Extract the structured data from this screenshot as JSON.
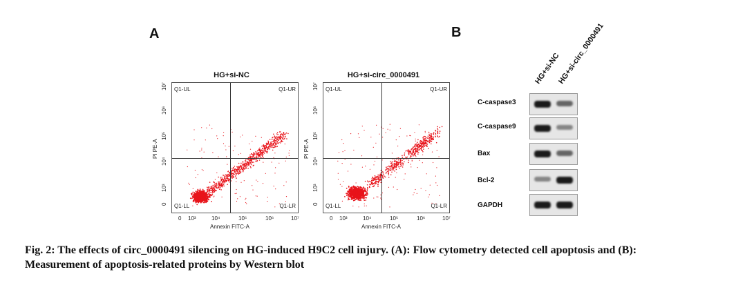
{
  "panels": {
    "a": "A",
    "b": "B"
  },
  "flow": {
    "plots": [
      {
        "title": "HG+si-NC"
      },
      {
        "title": "HG+si-circ_0000491"
      }
    ],
    "quadrants": {
      "ul": "Q1-UL",
      "ur": "Q1-UR",
      "ll": "Q1-LL",
      "lr": "Q1-LR"
    },
    "x_axis_label": "Annexin FITC-A",
    "y_axis_label": "PI PE-A",
    "x_ticks": [
      "0",
      "10³",
      "10⁴",
      "10⁵",
      "10⁶",
      "10⁷"
    ],
    "y_ticks": [
      "0",
      "10³",
      "10⁴",
      "10⁵",
      "10⁶",
      "10⁷"
    ],
    "dot_color": "#e8141b"
  },
  "western": {
    "lanes": [
      "HG+si-NC",
      "HG+si-circ_0000491"
    ],
    "proteins": [
      {
        "name": "C-caspase3",
        "levels": [
          0.95,
          0.6
        ]
      },
      {
        "name": "C-caspase9",
        "levels": [
          0.95,
          0.45
        ]
      },
      {
        "name": "Bax",
        "levels": [
          0.95,
          0.6
        ]
      },
      {
        "name": "Bcl-2",
        "levels": [
          0.45,
          0.95
        ]
      },
      {
        "name": "GAPDH",
        "levels": [
          0.95,
          0.95
        ]
      }
    ]
  },
  "caption": {
    "line1": "Fig. 2: The effects of circ_0000491 silencing on HG-induced H9C2 cell injury. (A): Flow cytometry detected cell apoptosis and (B):",
    "line2": "Measurement of apoptosis-related proteins by Western blot"
  }
}
